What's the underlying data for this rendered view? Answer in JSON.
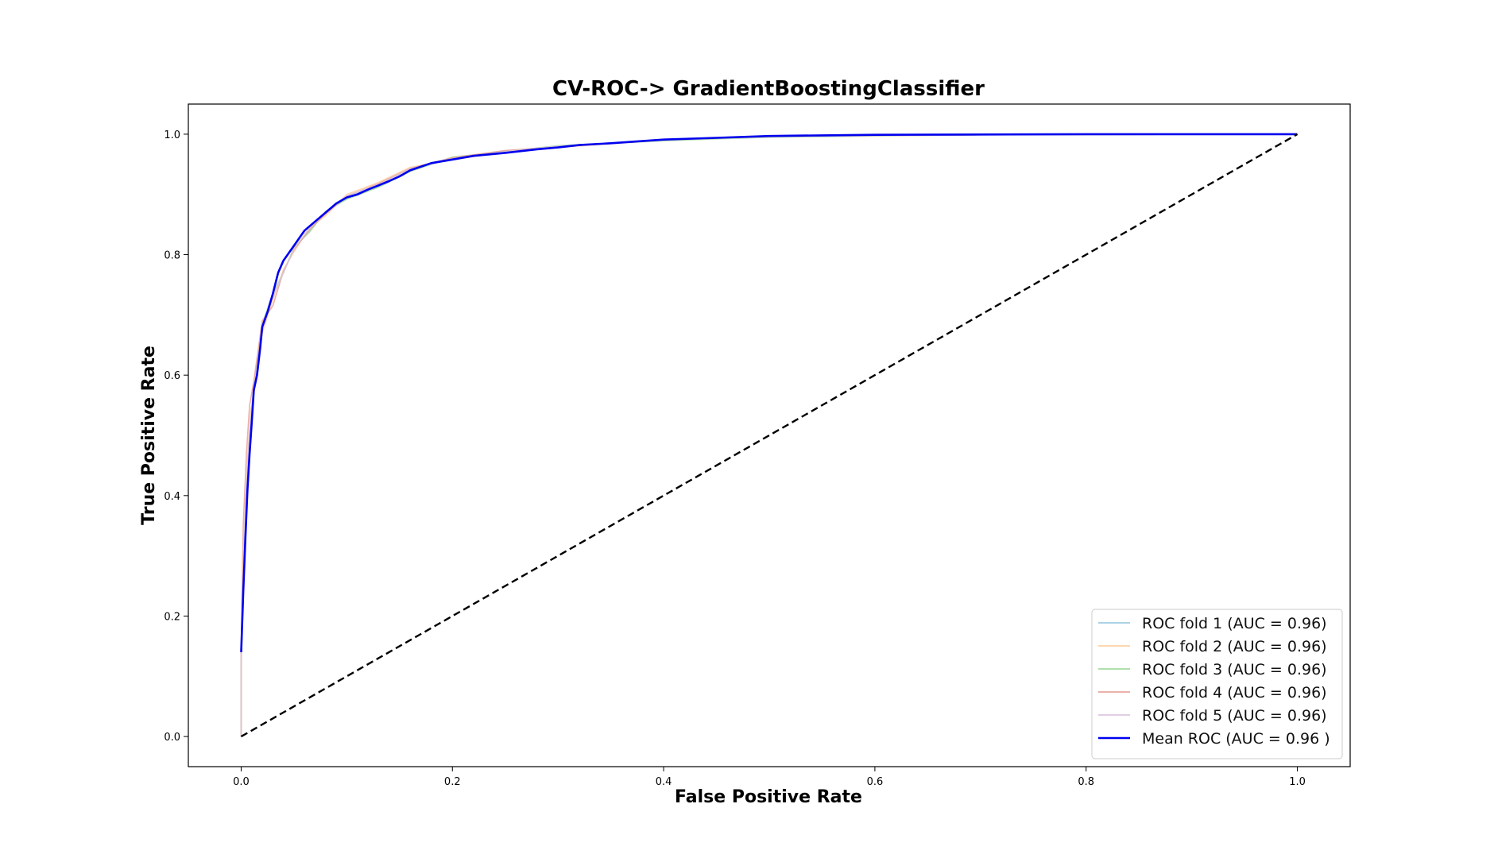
{
  "chart_data": {
    "type": "line",
    "title": "CV-ROC-> GradientBoostingClassifier",
    "xlabel": "False Positive Rate",
    "ylabel": "True Positive Rate",
    "xlim": [
      -0.05,
      1.05
    ],
    "ylim": [
      -0.05,
      1.05
    ],
    "xticks": [
      "0.0",
      "0.2",
      "0.4",
      "0.6",
      "0.8",
      "1.0"
    ],
    "yticks": [
      "0.0",
      "0.2",
      "0.4",
      "0.6",
      "0.8",
      "1.0"
    ],
    "xtick_values": [
      0.0,
      0.2,
      0.4,
      0.6,
      0.8,
      1.0
    ],
    "ytick_values": [
      0.0,
      0.2,
      0.4,
      0.6,
      0.8,
      1.0
    ],
    "grid": false,
    "legend_position": "bottom-right",
    "series": [
      {
        "name": "ROC fold 1 (AUC = 0.96)",
        "color": "#9ecae1",
        "x": [
          0,
          0,
          0.003,
          0.006,
          0.009,
          0.012,
          0.02,
          0.03,
          0.04,
          0.05,
          0.065,
          0.08,
          0.1,
          0.13,
          0.16,
          0.2,
          0.25,
          0.3,
          0.4,
          0.5,
          0.7,
          1.0
        ],
        "y": [
          0,
          0.14,
          0.32,
          0.45,
          0.53,
          0.58,
          0.68,
          0.73,
          0.77,
          0.81,
          0.84,
          0.87,
          0.895,
          0.915,
          0.94,
          0.96,
          0.972,
          0.98,
          0.99,
          0.996,
          0.999,
          1.0
        ]
      },
      {
        "name": "ROC fold 2 (AUC = 0.96)",
        "color": "#fdd0a2",
        "x": [
          0,
          0,
          0.003,
          0.006,
          0.009,
          0.012,
          0.02,
          0.03,
          0.04,
          0.05,
          0.065,
          0.08,
          0.1,
          0.13,
          0.16,
          0.2,
          0.25,
          0.3,
          0.4,
          0.5,
          0.7,
          1.0
        ],
        "y": [
          0,
          0.13,
          0.33,
          0.46,
          0.54,
          0.57,
          0.67,
          0.725,
          0.775,
          0.805,
          0.845,
          0.865,
          0.9,
          0.92,
          0.945,
          0.958,
          0.97,
          0.978,
          0.99,
          0.996,
          0.999,
          1.0
        ]
      },
      {
        "name": "ROC fold 3 (AUC = 0.96)",
        "color": "#a1d99b",
        "x": [
          0,
          0,
          0.003,
          0.006,
          0.009,
          0.012,
          0.02,
          0.03,
          0.04,
          0.05,
          0.065,
          0.08,
          0.1,
          0.13,
          0.16,
          0.2,
          0.25,
          0.3,
          0.4,
          0.5,
          0.7,
          1.0
        ],
        "y": [
          0,
          0.12,
          0.31,
          0.44,
          0.52,
          0.58,
          0.685,
          0.735,
          0.77,
          0.812,
          0.838,
          0.872,
          0.892,
          0.912,
          0.938,
          0.962,
          0.971,
          0.981,
          0.989,
          0.995,
          0.999,
          1.0
        ]
      },
      {
        "name": "ROC fold 4 (AUC = 0.96)",
        "color": "#e6a39a",
        "x": [
          0,
          0,
          0.002,
          0.005,
          0.008,
          0.012,
          0.02,
          0.03,
          0.04,
          0.05,
          0.065,
          0.08,
          0.1,
          0.13,
          0.16,
          0.2,
          0.25,
          0.3,
          0.4,
          0.5,
          0.7,
          1.0
        ],
        "y": [
          0,
          0.15,
          0.35,
          0.47,
          0.55,
          0.59,
          0.69,
          0.715,
          0.772,
          0.808,
          0.842,
          0.868,
          0.897,
          0.918,
          0.943,
          0.961,
          0.973,
          0.979,
          0.991,
          0.996,
          0.999,
          1.0
        ]
      },
      {
        "name": "ROC fold 5 (AUC = 0.96)",
        "color": "#dcc6e0",
        "x": [
          0,
          0,
          0.003,
          0.006,
          0.009,
          0.012,
          0.02,
          0.03,
          0.04,
          0.05,
          0.065,
          0.08,
          0.1,
          0.13,
          0.16,
          0.2,
          0.25,
          0.3,
          0.4,
          0.5,
          0.7,
          1.0
        ],
        "y": [
          0,
          0.13,
          0.32,
          0.45,
          0.53,
          0.575,
          0.675,
          0.73,
          0.77,
          0.81,
          0.845,
          0.87,
          0.898,
          0.916,
          0.942,
          0.959,
          0.971,
          0.98,
          0.99,
          0.996,
          0.999,
          1.0
        ]
      },
      {
        "name": "Mean ROC (AUC = 0.96 )",
        "color": "#0000ee",
        "x": [
          0,
          0.002,
          0.004,
          0.006,
          0.008,
          0.01,
          0.012,
          0.015,
          0.018,
          0.02,
          0.025,
          0.03,
          0.035,
          0.04,
          0.05,
          0.06,
          0.07,
          0.08,
          0.09,
          0.1,
          0.11,
          0.12,
          0.13,
          0.14,
          0.15,
          0.16,
          0.17,
          0.18,
          0.2,
          0.22,
          0.25,
          0.28,
          0.3,
          0.32,
          0.35,
          0.4,
          0.45,
          0.5,
          0.55,
          0.6,
          0.7,
          0.8,
          0.9,
          1.0
        ],
        "y": [
          0.14,
          0.24,
          0.33,
          0.41,
          0.47,
          0.52,
          0.575,
          0.6,
          0.645,
          0.68,
          0.705,
          0.735,
          0.77,
          0.79,
          0.815,
          0.84,
          0.855,
          0.87,
          0.885,
          0.895,
          0.9,
          0.908,
          0.915,
          0.922,
          0.93,
          0.94,
          0.946,
          0.952,
          0.958,
          0.964,
          0.969,
          0.975,
          0.978,
          0.982,
          0.985,
          0.991,
          0.994,
          0.997,
          0.998,
          0.999,
          0.9995,
          1.0,
          1.0,
          1.0
        ]
      }
    ],
    "reference_line": {
      "x": [
        0,
        1
      ],
      "y": [
        0,
        1
      ],
      "color": "#000000",
      "style": "dashed"
    }
  }
}
